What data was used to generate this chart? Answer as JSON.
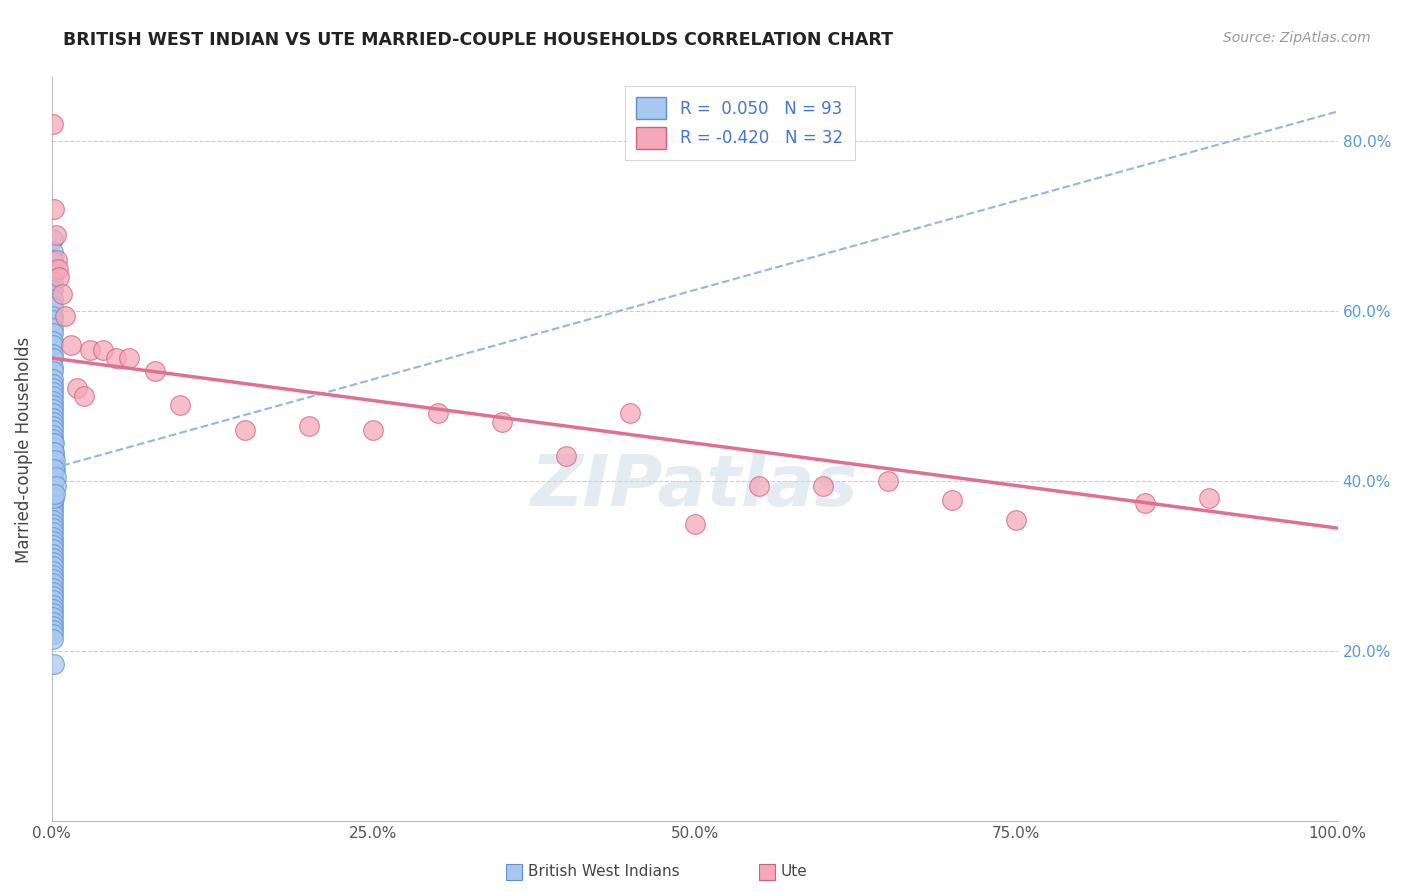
{
  "title": "BRITISH WEST INDIAN VS UTE MARRIED-COUPLE HOUSEHOLDS CORRELATION CHART",
  "source_text": "Source: ZipAtlas.com",
  "ylabel": "Married-couple Households",
  "xlim": [
    0.0,
    1.0
  ],
  "ylim": [
    0.0,
    0.875
  ],
  "xticks": [
    0.0,
    0.25,
    0.5,
    0.75,
    1.0
  ],
  "xtick_labels": [
    "0.0%",
    "25.0%",
    "50.0%",
    "75.0%",
    "100.0%"
  ],
  "right_yticks": [
    0.2,
    0.4,
    0.6,
    0.8
  ],
  "right_ytick_labels": [
    "20.0%",
    "40.0%",
    "60.0%",
    "80.0%"
  ],
  "blue_color": "#A8C8F0",
  "pink_color": "#F4A8B8",
  "blue_edge_color": "#6090C8",
  "pink_edge_color": "#D06080",
  "blue_trend_color": "#90B8E0",
  "pink_trend_color": "#E07090",
  "legend_blue_label": "British West Indians",
  "legend_pink_label": "Ute",
  "R_blue": 0.05,
  "N_blue": 93,
  "R_pink": -0.42,
  "N_pink": 32,
  "blue_trend_x0": 0.0,
  "blue_trend_y0": 0.415,
  "blue_trend_x1": 1.0,
  "blue_trend_y1": 0.835,
  "pink_trend_x0": 0.0,
  "pink_trend_y0": 0.545,
  "pink_trend_x1": 1.0,
  "pink_trend_y1": 0.345,
  "blue_scatter_x": [
    0.001,
    0.0012,
    0.0008,
    0.0015,
    0.001,
    0.0008,
    0.0012,
    0.001,
    0.0008,
    0.001,
    0.001,
    0.0012,
    0.001,
    0.0008,
    0.0012,
    0.001,
    0.0008,
    0.0012,
    0.001,
    0.0012,
    0.001,
    0.0008,
    0.001,
    0.0012,
    0.001,
    0.0008,
    0.001,
    0.0012,
    0.001,
    0.0008,
    0.001,
    0.0012,
    0.001,
    0.0008,
    0.001,
    0.0012,
    0.001,
    0.0008,
    0.001,
    0.0012,
    0.001,
    0.0008,
    0.001,
    0.0012,
    0.001,
    0.0008,
    0.001,
    0.0012,
    0.001,
    0.0008,
    0.001,
    0.0012,
    0.001,
    0.0008,
    0.001,
    0.0012,
    0.001,
    0.0008,
    0.001,
    0.0012,
    0.001,
    0.0008,
    0.001,
    0.0012,
    0.001,
    0.0008,
    0.001,
    0.0012,
    0.001,
    0.0008,
    0.001,
    0.0012,
    0.001,
    0.0008,
    0.001,
    0.0012,
    0.001,
    0.0008,
    0.001,
    0.0012,
    0.002,
    0.0018,
    0.0015,
    0.002,
    0.0018,
    0.002,
    0.0025,
    0.002,
    0.0022,
    0.0018,
    0.003,
    0.0035,
    0.0028
  ],
  "blue_scatter_y": [
    0.685,
    0.67,
    0.66,
    0.645,
    0.635,
    0.625,
    0.615,
    0.605,
    0.595,
    0.59,
    0.58,
    0.575,
    0.565,
    0.56,
    0.55,
    0.545,
    0.535,
    0.53,
    0.52,
    0.515,
    0.51,
    0.505,
    0.5,
    0.495,
    0.49,
    0.485,
    0.48,
    0.475,
    0.47,
    0.465,
    0.46,
    0.455,
    0.45,
    0.445,
    0.44,
    0.435,
    0.43,
    0.425,
    0.42,
    0.415,
    0.41,
    0.405,
    0.4,
    0.395,
    0.39,
    0.385,
    0.38,
    0.375,
    0.37,
    0.365,
    0.36,
    0.355,
    0.35,
    0.345,
    0.34,
    0.335,
    0.33,
    0.325,
    0.32,
    0.315,
    0.31,
    0.305,
    0.3,
    0.295,
    0.29,
    0.285,
    0.28,
    0.275,
    0.27,
    0.265,
    0.26,
    0.255,
    0.25,
    0.245,
    0.24,
    0.235,
    0.23,
    0.225,
    0.22,
    0.215,
    0.185,
    0.42,
    0.4,
    0.38,
    0.43,
    0.445,
    0.415,
    0.435,
    0.425,
    0.415,
    0.405,
    0.395,
    0.385
  ],
  "pink_scatter_x": [
    0.001,
    0.002,
    0.003,
    0.004,
    0.005,
    0.006,
    0.008,
    0.01,
    0.015,
    0.02,
    0.025,
    0.03,
    0.04,
    0.05,
    0.06,
    0.08,
    0.1,
    0.15,
    0.2,
    0.25,
    0.3,
    0.35,
    0.4,
    0.45,
    0.5,
    0.55,
    0.6,
    0.65,
    0.7,
    0.75,
    0.85,
    0.9
  ],
  "pink_scatter_y": [
    0.82,
    0.72,
    0.69,
    0.66,
    0.65,
    0.64,
    0.62,
    0.595,
    0.56,
    0.51,
    0.5,
    0.555,
    0.555,
    0.545,
    0.545,
    0.53,
    0.49,
    0.46,
    0.465,
    0.46,
    0.48,
    0.47,
    0.43,
    0.48,
    0.35,
    0.395,
    0.395,
    0.4,
    0.378,
    0.355,
    0.375,
    0.38
  ],
  "background_color": "#FFFFFF",
  "grid_color": "#CCCCCC",
  "legend_R_color": "#4477CC",
  "legend_label_color": "#333333",
  "right_axis_color": "#5599DD",
  "watermark_text": "ZIPatlas",
  "watermark_color": "#C8D8E8",
  "watermark_alpha": 0.5
}
